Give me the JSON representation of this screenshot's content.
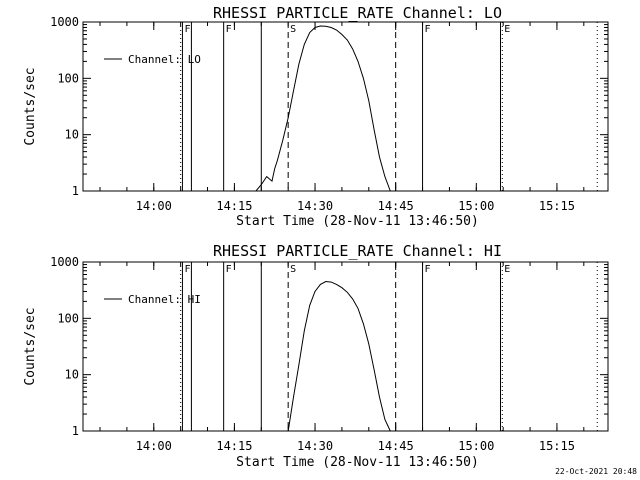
{
  "timestamp": "22-Oct-2021 20:48",
  "chart_data": [
    {
      "type": "line",
      "title": "RHESSI PARTICLE_RATE Channel: LO",
      "xlabel": "Start Time (28-Nov-11 13:46:50)",
      "ylabel": "Counts/sec",
      "yscale": "log",
      "ylim": [
        1,
        1000
      ],
      "xlim": [
        "13:46:50",
        "15:24:30"
      ],
      "xticks": [
        "14:00",
        "14:15",
        "14:30",
        "14:45",
        "15:00",
        "15:15"
      ],
      "yticks": [
        "1",
        "10",
        "100",
        "1000"
      ],
      "legend": {
        "label": "Channel: LO",
        "position": "top-left"
      },
      "series": [
        {
          "name": "Channel: LO",
          "x": [
            "14:19:00",
            "14:20:00",
            "14:21:00",
            "14:22:00",
            "14:22:30",
            "14:23:00",
            "14:24:00",
            "14:25:00",
            "14:26:00",
            "14:27:00",
            "14:28:00",
            "14:29:00",
            "14:30:00",
            "14:31:00",
            "14:32:00",
            "14:33:00",
            "14:34:00",
            "14:35:00",
            "14:36:00",
            "14:37:00",
            "14:38:00",
            "14:39:00",
            "14:40:00",
            "14:41:00",
            "14:42:00",
            "14:43:00",
            "14:44:00"
          ],
          "y": [
            1,
            1.3,
            1.8,
            1.5,
            2.5,
            3.5,
            8,
            20,
            60,
            180,
            400,
            650,
            800,
            850,
            840,
            800,
            720,
            600,
            480,
            330,
            200,
            100,
            40,
            12,
            4,
            1.8,
            1
          ]
        }
      ],
      "events": [
        {
          "label": "",
          "time": "14:05:00",
          "style": "dotted"
        },
        {
          "label": "F",
          "time": "14:05:20",
          "style": "solid"
        },
        {
          "label": "",
          "time": "14:07:00",
          "style": "solid"
        },
        {
          "label": "F",
          "time": "14:13:00",
          "style": "solid"
        },
        {
          "label": "",
          "time": "14:20:00",
          "style": "solid"
        },
        {
          "label": "S",
          "time": "14:25:00",
          "style": "dashed"
        },
        {
          "label": "",
          "time": "14:45:00",
          "style": "dashed"
        },
        {
          "label": "F",
          "time": "14:50:00",
          "style": "solid"
        },
        {
          "label": "",
          "time": "15:04:30",
          "style": "solid"
        },
        {
          "label": "E",
          "time": "15:04:50",
          "style": "dotted"
        },
        {
          "label": "",
          "time": "15:22:30",
          "style": "dotted"
        }
      ]
    },
    {
      "type": "line",
      "title": "RHESSI PARTICLE_RATE Channel: HI",
      "xlabel": "Start Time (28-Nov-11 13:46:50)",
      "ylabel": "Counts/sec",
      "yscale": "log",
      "ylim": [
        1,
        1000
      ],
      "xlim": [
        "13:46:50",
        "15:24:30"
      ],
      "xticks": [
        "14:00",
        "14:15",
        "14:30",
        "14:45",
        "15:00",
        "15:15"
      ],
      "yticks": [
        "1",
        "10",
        "100",
        "1000"
      ],
      "legend": {
        "label": "Channel: HI",
        "position": "top-left"
      },
      "series": [
        {
          "name": "Channel: HI",
          "x": [
            "14:25:00",
            "14:26:00",
            "14:27:00",
            "14:28:00",
            "14:29:00",
            "14:30:00",
            "14:31:00",
            "14:32:00",
            "14:33:00",
            "14:34:00",
            "14:35:00",
            "14:36:00",
            "14:37:00",
            "14:38:00",
            "14:39:00",
            "14:40:00",
            "14:41:00",
            "14:42:00",
            "14:43:00",
            "14:44:00"
          ],
          "y": [
            1,
            4,
            15,
            60,
            170,
            300,
            400,
            450,
            440,
            400,
            350,
            290,
            220,
            150,
            80,
            35,
            12,
            4,
            1.6,
            1
          ]
        }
      ],
      "events": [
        {
          "label": "",
          "time": "14:05:00",
          "style": "dotted"
        },
        {
          "label": "F",
          "time": "14:05:20",
          "style": "solid"
        },
        {
          "label": "",
          "time": "14:07:00",
          "style": "solid"
        },
        {
          "label": "F",
          "time": "14:13:00",
          "style": "solid"
        },
        {
          "label": "",
          "time": "14:20:00",
          "style": "solid"
        },
        {
          "label": "S",
          "time": "14:25:00",
          "style": "dashed"
        },
        {
          "label": "",
          "time": "14:45:00",
          "style": "dashed"
        },
        {
          "label": "F",
          "time": "14:50:00",
          "style": "solid"
        },
        {
          "label": "",
          "time": "15:04:30",
          "style": "solid"
        },
        {
          "label": "E",
          "time": "15:04:50",
          "style": "dotted"
        },
        {
          "label": "",
          "time": "15:22:30",
          "style": "dotted"
        }
      ]
    }
  ]
}
